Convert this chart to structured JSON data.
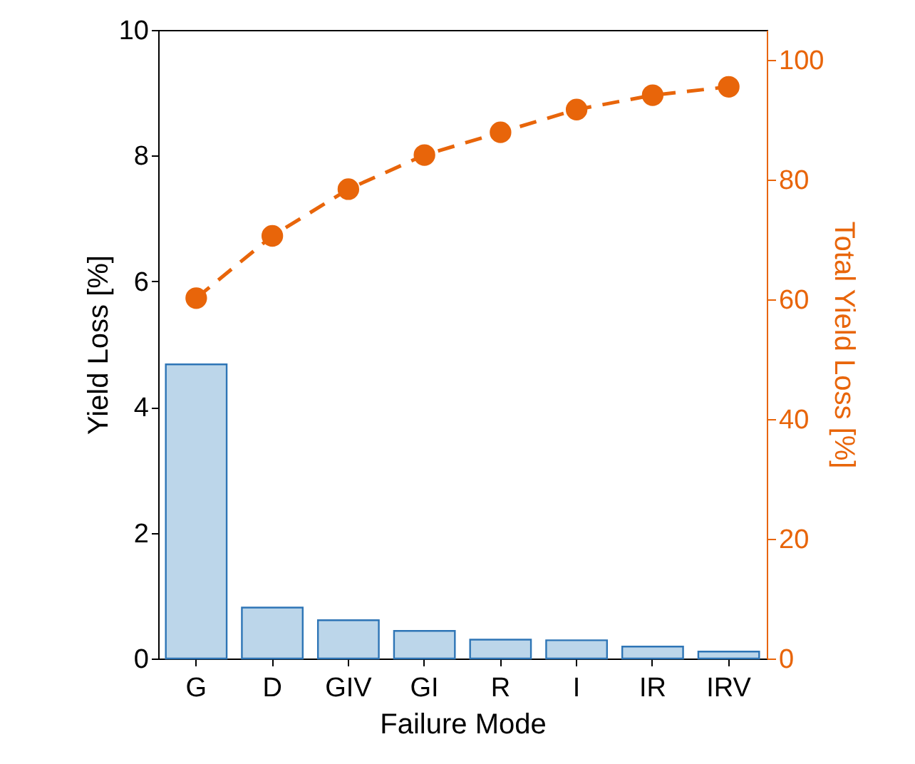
{
  "chart_data": {
    "type": "bar",
    "xlabel": "Failure Mode",
    "ylabel": "Yield Loss [%]",
    "y2label": "Total Yield Loss [%]",
    "categories": [
      "G",
      "D",
      "GIV",
      "GI",
      "R",
      "I",
      "IR",
      "IRV"
    ],
    "series": [
      {
        "color": "#bcd6ea",
        "values": [
          4.68,
          0.81,
          0.61,
          0.44,
          0.3,
          0.29,
          0.19,
          0.11
        ]
      },
      {
        "type": "line",
        "axis": "y2",
        "color": "#e8650a",
        "marker": "circle",
        "line_style": "dashed",
        "values": [
          60.2,
          70.6,
          78.4,
          84.1,
          87.9,
          91.7,
          94.1,
          95.5
        ]
      }
    ],
    "ylim": [
      0,
      10
    ],
    "yticks": [
      0,
      2,
      4,
      6,
      8,
      10
    ],
    "y2lim": [
      0,
      105
    ],
    "y2ticks": [
      0,
      20,
      40,
      60,
      80,
      100
    ],
    "grid": false
  }
}
